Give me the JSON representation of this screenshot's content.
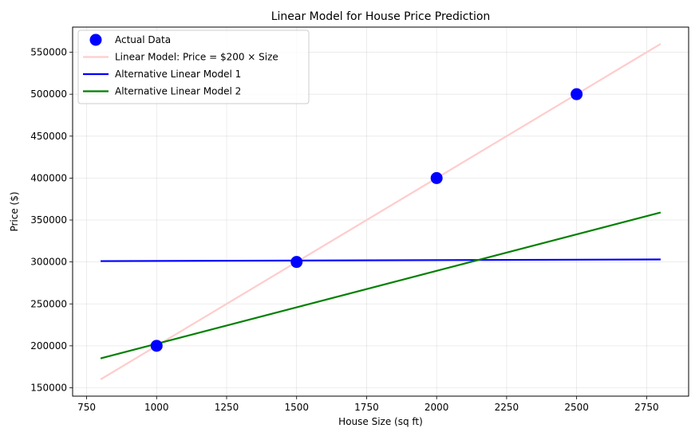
{
  "chart_data": {
    "type": "line",
    "title": "Linear Model for House Price Prediction",
    "xlabel": "House Size (sq ft)",
    "ylabel": "Price ($)",
    "xlim": [
      700,
      2900
    ],
    "ylim": [
      140000,
      580000
    ],
    "xticks": [
      750,
      1000,
      1250,
      1500,
      1750,
      2000,
      2250,
      2500,
      2750
    ],
    "yticks": [
      150000,
      200000,
      250000,
      300000,
      350000,
      400000,
      450000,
      500000,
      550000
    ],
    "grid": true,
    "legend_position": "top-left",
    "scatter": {
      "name": "Actual Data",
      "color": "#0000ff",
      "x": [
        1000,
        1500,
        2000,
        2500
      ],
      "y": [
        200000,
        300000,
        400000,
        500000
      ]
    },
    "series": [
      {
        "name": "Linear Model: Price = $200 × Size",
        "color": "#ffcccc",
        "x": [
          800,
          2800
        ],
        "y": [
          160000,
          560000
        ]
      },
      {
        "name": "Alternative Linear Model 1",
        "color": "#0000ff",
        "x": [
          800,
          2800
        ],
        "y": [
          301000,
          303000
        ]
      },
      {
        "name": "Alternative Linear Model 2",
        "color": "#008000",
        "x": [
          800,
          2800
        ],
        "y": [
          185000,
          359000
        ]
      }
    ]
  }
}
